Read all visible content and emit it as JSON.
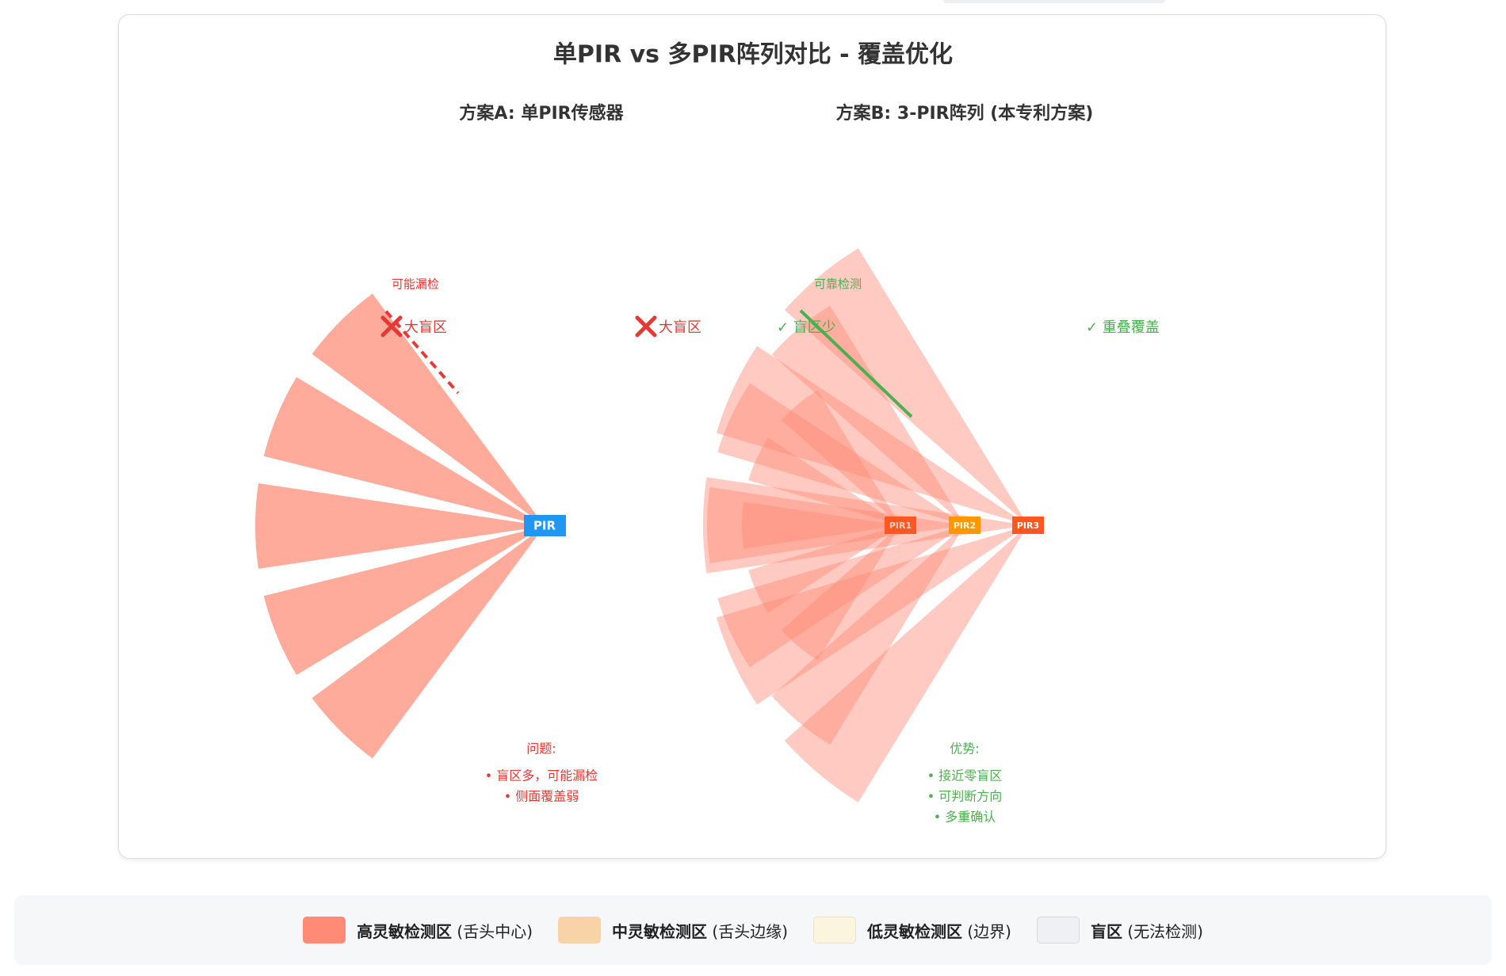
{
  "diagram": {
    "title": "单PIR vs 多PIR阵列对比 - 覆盖优化",
    "scheme_a": {
      "heading": "方案A: 单PIR传感器",
      "sensor_label": "PIR",
      "miss_label": "可能漏检",
      "blind_label": "大盲区",
      "blind_label_2": "大盲区",
      "problems_title": "问题:",
      "problems": [
        "• 盲区多，可能漏检",
        "• 侧面覆盖弱"
      ]
    },
    "scheme_b": {
      "heading": "方案B: 3-PIR阵列 (本专利方案)",
      "sensors": [
        "PIR1",
        "PIR2",
        "PIR3"
      ],
      "reliable_label": "可靠检测",
      "few_blind_label": "✓ 盲区少",
      "overlap_label": "✓ 重叠覆盖",
      "advantages_title": "优势:",
      "advantages": [
        "• 接近零盲区",
        "• 可判断方向",
        "• 多重确认"
      ]
    },
    "colors": {
      "high": "#ff8a75",
      "medium": "#f9d3a8",
      "low": "#fbf5e0",
      "blind": "#eef0f3",
      "sensor_single": "#2196f3",
      "pir1": "#ff5722",
      "pir2": "#ff9800",
      "pir3": "#ff5722",
      "problem_text": "#e53935",
      "advantage_text": "#4caf50"
    }
  },
  "legend": [
    {
      "name": "高灵敏检测区",
      "desc": " (舌头中心)",
      "color": "#ff8a75",
      "border": "#ff8a75"
    },
    {
      "name": "中灵敏检测区",
      "desc": " (舌头边缘)",
      "color": "#f9d3a8",
      "border": "#f9d3a8"
    },
    {
      "name": "低灵敏检测区",
      "desc": " (边界)",
      "color": "#fbf5e0",
      "border": "#e8e2c8"
    },
    {
      "name": "盲区",
      "desc": " (无法检测)",
      "color": "#eef0f3",
      "border": "#d6d8dc"
    }
  ]
}
